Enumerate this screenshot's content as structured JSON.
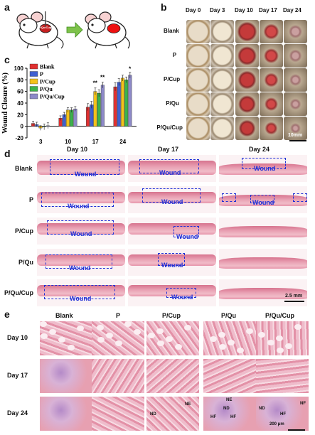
{
  "panels": {
    "a": "a",
    "b": "b",
    "c": "c",
    "d": "d",
    "e": "e"
  },
  "panel_a": {
    "implant_label": "P/Qu/Cup"
  },
  "panel_b": {
    "days": [
      "Day 0",
      "Day 3",
      "Day 10",
      "Day 17",
      "Day 24"
    ],
    "groups": [
      "Blank",
      "P",
      "P/Cup",
      "P/Qu",
      "P/Qu/Cup"
    ],
    "scale_bar": "10mm"
  },
  "panel_c": {
    "chart_data": {
      "type": "bar",
      "ylabel": "Wound Closure (%)",
      "ylim": [
        -20,
        100
      ],
      "yticks": [
        -20,
        0,
        20,
        40,
        60,
        80,
        100
      ],
      "categories": [
        "3",
        "10",
        "17",
        "24"
      ],
      "series": [
        {
          "name": "Blank",
          "color": "#e03030",
          "values": [
            5,
            14,
            33,
            68
          ]
        },
        {
          "name": "P",
          "color": "#3f5fd0",
          "values": [
            3,
            20,
            37,
            76
          ]
        },
        {
          "name": "P/Cup",
          "color": "#f3c21a",
          "values": [
            -3,
            28,
            60,
            83
          ]
        },
        {
          "name": "P/Qu",
          "color": "#3cb34a",
          "values": [
            -1,
            28,
            57,
            80
          ]
        },
        {
          "name": "P/Qu/Cup",
          "color": "#8d89c8",
          "values": [
            1,
            30,
            71,
            88
          ]
        }
      ],
      "errors": [
        [
          4,
          4,
          6,
          7
        ],
        [
          4,
          4,
          6,
          6
        ],
        [
          4,
          4,
          6,
          5
        ],
        [
          5,
          4,
          6,
          5
        ],
        [
          5,
          4,
          5,
          5
        ]
      ],
      "significance": [
        {
          "category": "17",
          "label": "**"
        },
        {
          "category": "17",
          "label": "**"
        },
        {
          "category": "24",
          "label": "*"
        }
      ]
    }
  },
  "panel_d": {
    "days": [
      "Day 10",
      "Day 17",
      "Day 24"
    ],
    "groups": [
      "Blank",
      "P",
      "P/Cup",
      "P/Qu",
      "P/Qu/Cup"
    ],
    "wound_label": "Wound",
    "scale_bar": "2.5 mm"
  },
  "panel_e": {
    "groups": [
      "Blank",
      "P",
      "P/Cup",
      "P/Qu",
      "P/Qu/Cup"
    ],
    "days": [
      "Day 10",
      "Day 17",
      "Day 24"
    ],
    "annotations": {
      "ne": "NE",
      "nd": "ND",
      "hf": "HF",
      "nf": "NF"
    },
    "scale_bar": "200 μm"
  },
  "colors": {
    "wound_box": "#1f2fd6",
    "he_pink": "#e59aac",
    "he_purple": "#8a5fb0"
  }
}
